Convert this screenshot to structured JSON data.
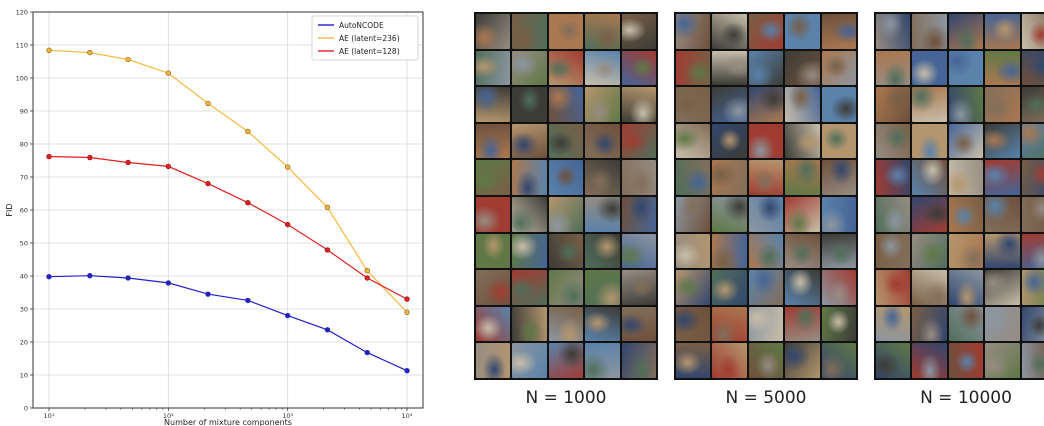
{
  "chart_data": {
    "type": "line",
    "xlabel": "Number of mixture components",
    "ylabel": "FID",
    "xscale": "log",
    "xlim": [
      10,
      10000
    ],
    "ylim": [
      0,
      120
    ],
    "yticks": [
      0,
      10,
      20,
      30,
      40,
      50,
      60,
      70,
      80,
      90,
      100,
      110,
      120
    ],
    "xticks": [
      "10¹",
      "10²",
      "10³",
      "10⁴"
    ],
    "grid": true,
    "legend_position": "top-right",
    "x": [
      10,
      22,
      46,
      100,
      215,
      464,
      1000,
      2154,
      4642,
      10000
    ],
    "series": [
      {
        "name": "AutoNCODE",
        "color": "#2020d0",
        "marker_color": "#3030a0",
        "values": [
          39.8,
          40.1,
          39.4,
          37.9,
          34.5,
          32.6,
          28.0,
          23.7,
          16.8,
          11.3
        ]
      },
      {
        "name": "AE (latent=236)",
        "color": "#f5b942",
        "marker_color": "#a07020",
        "values": [
          108.4,
          107.7,
          105.6,
          101.5,
          92.3,
          83.8,
          73.0,
          60.8,
          41.6,
          29.0
        ]
      },
      {
        "name": "AE (latent=128)",
        "color": "#e02020",
        "marker_color": "#a01818",
        "values": [
          76.2,
          75.9,
          74.4,
          73.2,
          68.0,
          62.2,
          55.6,
          47.9,
          39.4,
          33.0
        ]
      }
    ]
  },
  "panels": [
    {
      "caption": "N = 1000",
      "seed": 11,
      "icon": "sample-image-grid"
    },
    {
      "caption": "N = 5000",
      "seed": 37,
      "icon": "sample-image-grid"
    },
    {
      "caption": "N = 10000",
      "seed": 73,
      "icon": "sample-image-grid"
    }
  ]
}
